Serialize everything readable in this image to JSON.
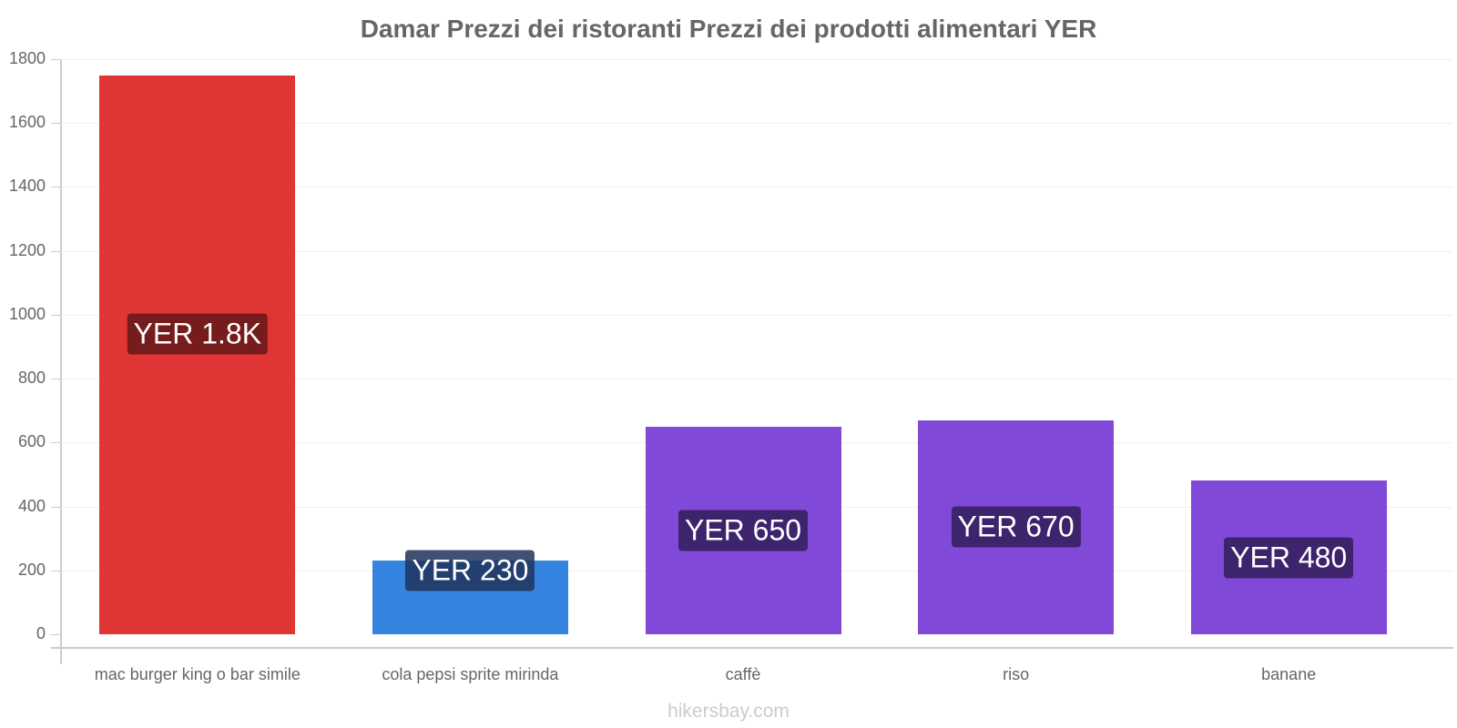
{
  "chart_data": {
    "type": "bar",
    "title": "Damar Prezzi dei ristoranti Prezzi dei prodotti alimentari YER",
    "xlabel": "",
    "ylabel": "",
    "ylim": [
      0,
      1800
    ],
    "yticks": [
      0,
      200,
      400,
      600,
      800,
      1000,
      1200,
      1400,
      1600,
      1800
    ],
    "grid": true,
    "legend": null,
    "categories": [
      "mac burger king o bar simile",
      "cola pepsi sprite mirinda",
      "caffè",
      "riso",
      "banane"
    ],
    "values": [
      1750,
      230,
      650,
      670,
      480
    ],
    "data_labels": [
      "YER 1.8K",
      "YER 230",
      "YER 650",
      "YER 670",
      "YER 480"
    ],
    "bar_colors": [
      "#e03535",
      "#3584e0",
      "#8149d8",
      "#8149d8",
      "#8149d8"
    ],
    "label_colors": [
      "#761c1c",
      "#1c4270",
      "#3e246c",
      "#3e246c",
      "#3e246c"
    ]
  },
  "footer": "hikersbay.com"
}
